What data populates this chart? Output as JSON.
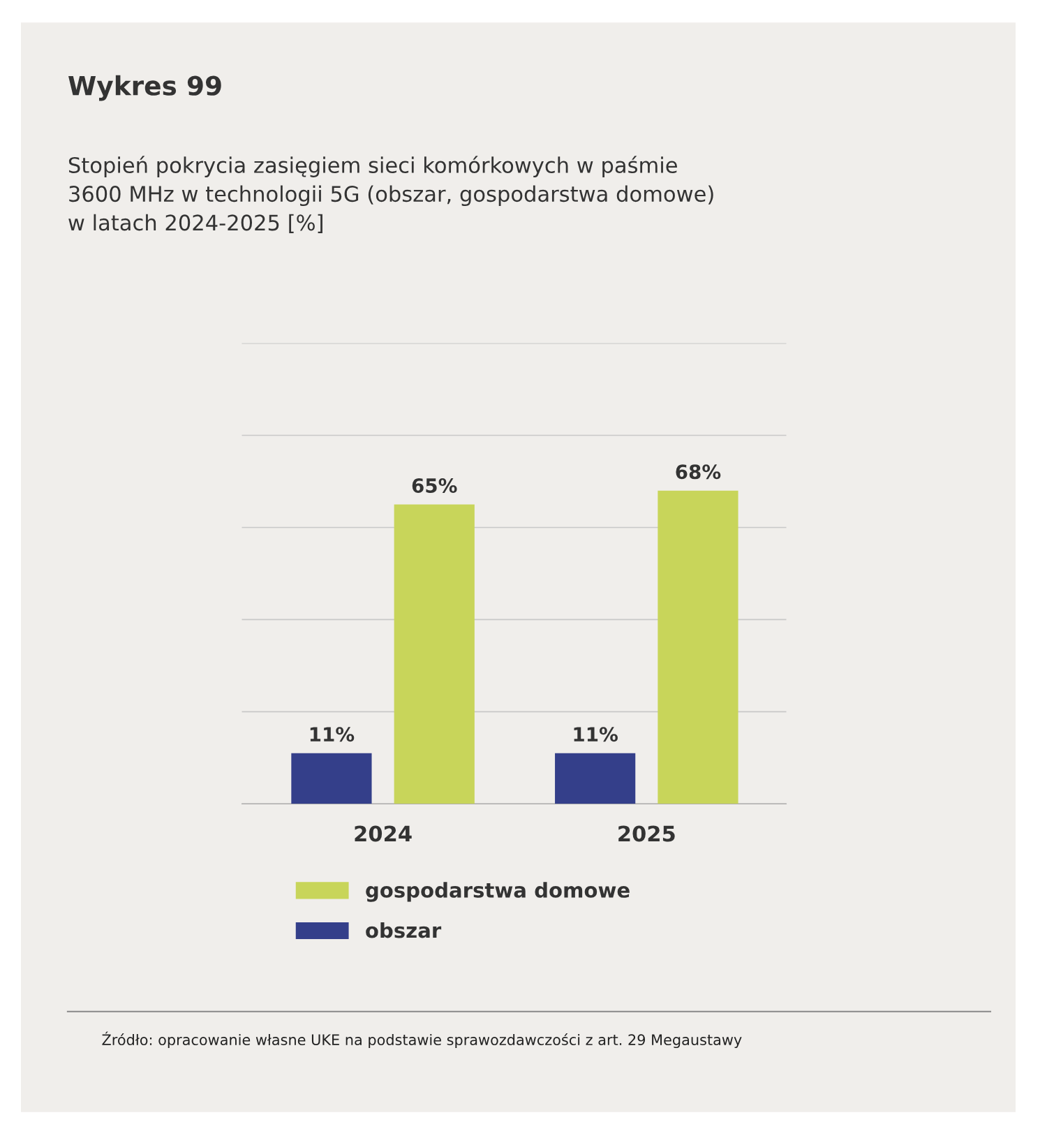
{
  "chart_data": {
    "type": "bar",
    "title": "Wykres 99",
    "subtitle": "Stopień pokrycia zasięgiem sieci komórkowych w paśmie\n3600 MHz w technologii 5G (obszar, gospodarstwa domowe)\nw latach 2024-2025 [%]",
    "categories": [
      "2024",
      "2025"
    ],
    "series": [
      {
        "name": "obszar",
        "color": "#343f8a",
        "values": [
          11,
          11
        ],
        "value_labels": [
          "11%",
          "11%"
        ]
      },
      {
        "name": "gospodarstwa domowe",
        "color": "#c8d55a",
        "values": [
          65,
          68
        ],
        "value_labels": [
          "65%",
          "68%"
        ]
      }
    ],
    "ylim": [
      0,
      100
    ],
    "yticks": [
      {
        "value": 0,
        "label": null
      },
      {
        "value": 20,
        "label": null
      },
      {
        "value": 40,
        "label": null
      },
      {
        "value": 60,
        "label": null
      },
      {
        "value": 80,
        "label": null
      },
      {
        "value": 100,
        "label": null
      }
    ],
    "grid": "y",
    "legend": "bottom",
    "tick_labels": "x",
    "annotations": [
      "Źródło: opracowanie własne UKE na podstawie sprawozdawczości z art. 29 Megaustawy"
    ]
  }
}
